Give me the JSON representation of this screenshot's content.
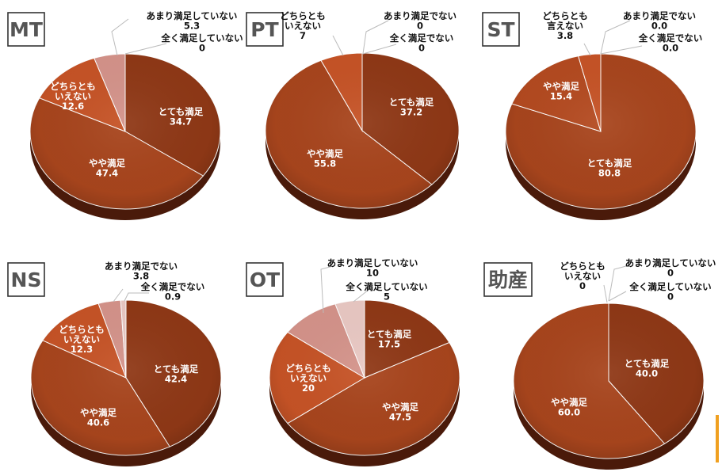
{
  "chart_data": [
    {
      "type": "pie",
      "title": "MT",
      "slices": [
        {
          "label": [
            "とても満足"
          ],
          "value_text": "34.7",
          "value": 34.7,
          "color": "#8f3816"
        },
        {
          "label": [
            "やや満足"
          ],
          "value_text": "47.4",
          "value": 47.4,
          "color": "#a8451d"
        },
        {
          "label": [
            "どちらとも",
            "いえない"
          ],
          "value_text": "12.6",
          "value": 12.6,
          "color": "#c65326"
        },
        {
          "label": [
            "あまり満足していない"
          ],
          "value_text": "5.3",
          "value": 5.3,
          "color": "#d4938a"
        },
        {
          "label": [
            "全く満足していない"
          ],
          "value_text": "0",
          "value": 0,
          "color": "#e9c8c3"
        }
      ]
    },
    {
      "type": "pie",
      "title": "PT",
      "slices": [
        {
          "label": [
            "とても満足"
          ],
          "value_text": "37.2",
          "value": 37.2,
          "color": "#8f3816"
        },
        {
          "label": [
            "やや満足"
          ],
          "value_text": "55.8",
          "value": 55.8,
          "color": "#a8451d"
        },
        {
          "label": [
            "どちらとも",
            "いえない"
          ],
          "value_text": "7",
          "value": 7,
          "color": "#c65326"
        },
        {
          "label": [
            "あまり満足でない"
          ],
          "value_text": "0",
          "value": 0,
          "color": "#d4938a"
        },
        {
          "label": [
            "全く満足でない"
          ],
          "value_text": "0",
          "value": 0,
          "color": "#e9c8c3"
        }
      ]
    },
    {
      "type": "pie",
      "title": "ST",
      "slices": [
        {
          "label": [
            "とても満足"
          ],
          "value_text": "80.8",
          "value": 80.8,
          "color": "#a8451d"
        },
        {
          "label": [
            "やや満足"
          ],
          "value_text": "15.4",
          "value": 15.4,
          "color": "#b44a20"
        },
        {
          "label": [
            "どちらとも",
            "言えない"
          ],
          "value_text": "3.8",
          "value": 3.8,
          "color": "#c65326"
        },
        {
          "label": [
            "あまり満足でない"
          ],
          "value_text": "0.0",
          "value": 0,
          "color": "#d4938a"
        },
        {
          "label": [
            "全く満足でない"
          ],
          "value_text": "0.0",
          "value": 0,
          "color": "#e9c8c3"
        }
      ]
    },
    {
      "type": "pie",
      "title": "NS",
      "slices": [
        {
          "label": [
            "とても満足"
          ],
          "value_text": "42.4",
          "value": 42.4,
          "color": "#8f3816"
        },
        {
          "label": [
            "やや満足"
          ],
          "value_text": "40.6",
          "value": 40.6,
          "color": "#a8451d"
        },
        {
          "label": [
            "どちらとも",
            "いえない"
          ],
          "value_text": "12.3",
          "value": 12.3,
          "color": "#c65326"
        },
        {
          "label": [
            "あまり満足でない"
          ],
          "value_text": "3.8",
          "value": 3.8,
          "color": "#d4938a"
        },
        {
          "label": [
            "全く満足でない"
          ],
          "value_text": "0.9",
          "value": 0.9,
          "color": "#e9c8c3"
        }
      ]
    },
    {
      "type": "pie",
      "title": "OT",
      "slices": [
        {
          "label": [
            "とても満足"
          ],
          "value_text": "17.5",
          "value": 17.5,
          "color": "#8f3816"
        },
        {
          "label": [
            "やや満足"
          ],
          "value_text": "47.5",
          "value": 47.5,
          "color": "#a8451d"
        },
        {
          "label": [
            "どちらとも",
            "いえない"
          ],
          "value_text": "20",
          "value": 20,
          "color": "#c65326"
        },
        {
          "label": [
            "あまり満足していない"
          ],
          "value_text": "10",
          "value": 10,
          "color": "#d4938a"
        },
        {
          "label": [
            "全く満足していない"
          ],
          "value_text": "5",
          "value": 5,
          "color": "#e9c8c3"
        }
      ]
    },
    {
      "type": "pie",
      "title": "助産",
      "slices": [
        {
          "label": [
            "とても満足"
          ],
          "value_text": "40.0",
          "value": 40.0,
          "color": "#8f3816"
        },
        {
          "label": [
            "やや満足"
          ],
          "value_text": "60.0",
          "value": 60.0,
          "color": "#a8451d"
        },
        {
          "label": [
            "どちらとも",
            "いえない"
          ],
          "value_text": "0",
          "value": 0,
          "color": "#c65326"
        },
        {
          "label": [
            "あまり満足していない"
          ],
          "value_text": "0",
          "value": 0,
          "color": "#d4938a"
        },
        {
          "label": [
            "全く満足していない"
          ],
          "value_text": "0",
          "value": 0,
          "color": "#e9c8c3"
        }
      ]
    }
  ]
}
